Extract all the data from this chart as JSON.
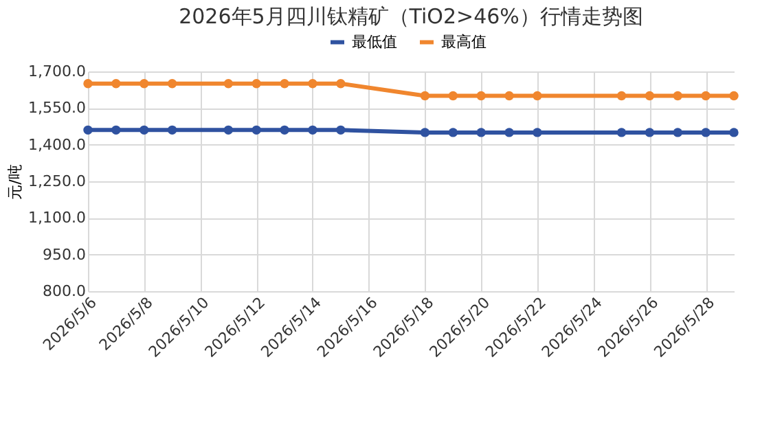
{
  "chart_data": {
    "type": "line",
    "title": "2026年5月四川钛精矿（TiO2>46%）行情走势图",
    "ylabel": "元/吨",
    "x": [
      "2026-05-06",
      "2026-05-07",
      "2026-05-08",
      "2026-05-09",
      "2026-05-11",
      "2026-05-12",
      "2026-05-13",
      "2026-05-14",
      "2026-05-15",
      "2026-05-18",
      "2026-05-19",
      "2026-05-20",
      "2026-05-21",
      "2026-05-22",
      "2026-05-25",
      "2026-05-26",
      "2026-05-27",
      "2026-05-28",
      "2026-05-29"
    ],
    "series": [
      {
        "name": "最低值",
        "color": "#2f52a0",
        "values": [
          1460,
          1460,
          1460,
          1460,
          1460,
          1460,
          1460,
          1460,
          1460,
          1450,
          1450,
          1450,
          1450,
          1450,
          1450,
          1450,
          1450,
          1450,
          1450
        ]
      },
      {
        "name": "最高值",
        "color": "#f0862e",
        "values": [
          1650,
          1650,
          1650,
          1650,
          1650,
          1650,
          1650,
          1650,
          1650,
          1600,
          1600,
          1600,
          1600,
          1600,
          1600,
          1600,
          1600,
          1600,
          1600
        ]
      }
    ],
    "xlim": [
      "2026-05-06",
      "2026-05-29"
    ],
    "xticks": [
      {
        "value": "2026-05-06",
        "label": "2026/5/6"
      },
      {
        "value": "2026-05-08",
        "label": "2026/5/8"
      },
      {
        "value": "2026-05-10",
        "label": "2026/5/10"
      },
      {
        "value": "2026-05-12",
        "label": "2026/5/12"
      },
      {
        "value": "2026-05-14",
        "label": "2026/5/14"
      },
      {
        "value": "2026-05-16",
        "label": "2026/5/16"
      },
      {
        "value": "2026-05-18",
        "label": "2026/5/18"
      },
      {
        "value": "2026-05-20",
        "label": "2026/5/20"
      },
      {
        "value": "2026-05-22",
        "label": "2026/5/22"
      },
      {
        "value": "2026-05-24",
        "label": "2026/5/24"
      },
      {
        "value": "2026-05-26",
        "label": "2026/5/26"
      },
      {
        "value": "2026-05-28",
        "label": "2026/5/28"
      }
    ],
    "ylim": [
      800,
      1700
    ],
    "yticks": [
      {
        "value": 800,
        "label": "800.0"
      },
      {
        "value": 950,
        "label": "950.0"
      },
      {
        "value": 1100,
        "label": "1,100.0"
      },
      {
        "value": 1250,
        "label": "1,250.0"
      },
      {
        "value": 1400,
        "label": "1,400.0"
      },
      {
        "value": 1550,
        "label": "1,550.0"
      },
      {
        "value": 1700,
        "label": "1,700.0"
      }
    ],
    "grid": true,
    "legend": "top",
    "marker": "circle",
    "line_style": "solid"
  }
}
